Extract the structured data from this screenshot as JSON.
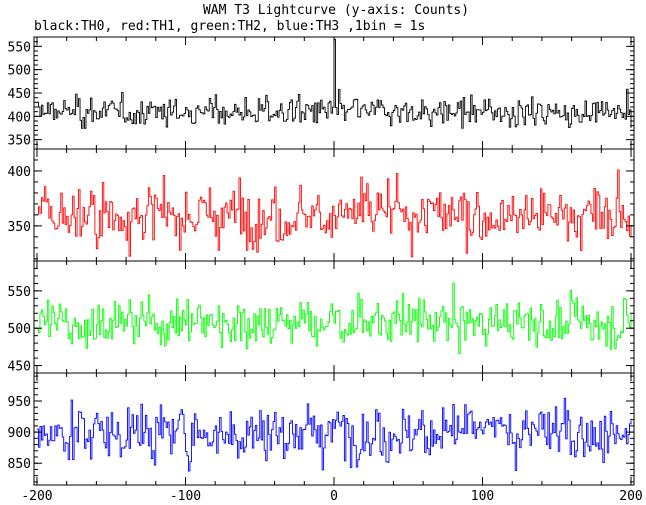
{
  "title": "WAM T3 Lightcurve (y-axis: Counts)",
  "subtitle": "black:TH0, red:TH1, green:TH2, blue:TH3 ,1bin = 1s",
  "x_ticks": [
    "-200",
    "-100",
    "0",
    "100",
    "200"
  ],
  "chart_data": [
    {
      "type": "line",
      "color": "#000000",
      "xlim": [
        -202,
        202
      ],
      "ylim": [
        330,
        570
      ],
      "yticks": [
        350,
        400,
        450,
        500,
        550
      ],
      "ytick_labels": [
        "350",
        "400",
        "450",
        "500",
        "550"
      ],
      "baseline": 410,
      "noise": 20,
      "spike": {
        "x": 0,
        "y": 565
      },
      "x_range": [
        -200,
        200
      ],
      "bin_seconds": 1
    },
    {
      "type": "line",
      "color": "#ff0000",
      "xlim": [
        -202,
        202
      ],
      "ylim": [
        318,
        420
      ],
      "yticks": [
        350,
        400
      ],
      "ytick_labels": [
        "350",
        "400"
      ],
      "baseline": 360,
      "noise": 18,
      "x_range": [
        -200,
        200
      ],
      "bin_seconds": 1
    },
    {
      "type": "line",
      "color": "#00ff00",
      "xlim": [
        -202,
        202
      ],
      "ylim": [
        440,
        590
      ],
      "yticks": [
        450,
        500,
        550
      ],
      "ytick_labels": [
        "450",
        "500",
        "550"
      ],
      "baseline": 508,
      "noise": 22,
      "x_range": [
        -200,
        200
      ],
      "bin_seconds": 1
    },
    {
      "type": "line",
      "color": "#0000ff",
      "xlim": [
        -202,
        202
      ],
      "ylim": [
        815,
        995
      ],
      "yticks": [
        850,
        900,
        950
      ],
      "ytick_labels": [
        "850",
        "900",
        "950"
      ],
      "baseline": 900,
      "noise": 30,
      "x_range": [
        -200,
        200
      ],
      "bin_seconds": 1
    }
  ]
}
